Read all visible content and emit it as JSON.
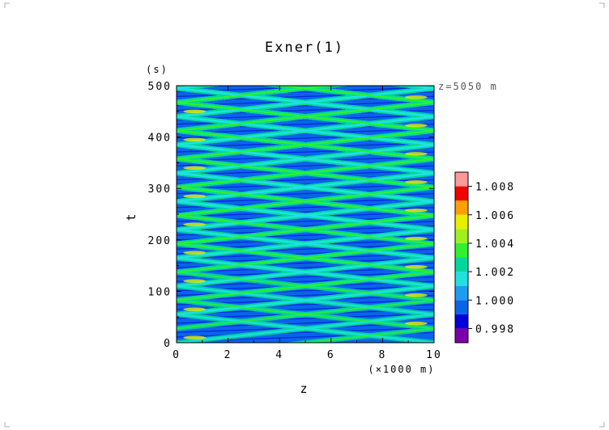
{
  "chart_data": {
    "type": "heatmap",
    "title": "Exner(1)",
    "xlabel": "z",
    "x_unit": "(×1000 m)",
    "ylabel": "t",
    "y_unit": "(s)",
    "annotation": "z=5050 m",
    "xlim": [
      0,
      10
    ],
    "ylim": [
      0,
      500
    ],
    "x_ticks": [
      "0",
      "2",
      "4",
      "6",
      "8",
      "10"
    ],
    "y_ticks": [
      "0",
      "100",
      "200",
      "300",
      "400",
      "500"
    ],
    "x_tick_values": [
      0,
      2,
      4,
      6,
      8,
      10
    ],
    "y_tick_values": [
      0,
      100,
      200,
      300,
      400,
      500
    ],
    "colorbar": {
      "levels": [
        0.997,
        0.998,
        0.999,
        1.0,
        1.001,
        1.002,
        1.003,
        1.004,
        1.005,
        1.006,
        1.007,
        1.008,
        1.009
      ],
      "labels": [
        "0.998",
        "1.000",
        "1.002",
        "1.004",
        "1.006",
        "1.008"
      ],
      "label_values": [
        0.998,
        1.0,
        1.002,
        1.004,
        1.006,
        1.008
      ],
      "colors": [
        "#7a00a8",
        "#0000d8",
        "#0a64e8",
        "#1e9cf0",
        "#20e0e0",
        "#00d89a",
        "#30f030",
        "#a0f020",
        "#e8f000",
        "#ffa000",
        "#f00000",
        "#ff9999"
      ]
    },
    "background_value": 0.9995,
    "wave_periods_s": 55,
    "wave_pattern": "zig-zag crossing wavefronts bouncing between z=0 and z=10"
  }
}
